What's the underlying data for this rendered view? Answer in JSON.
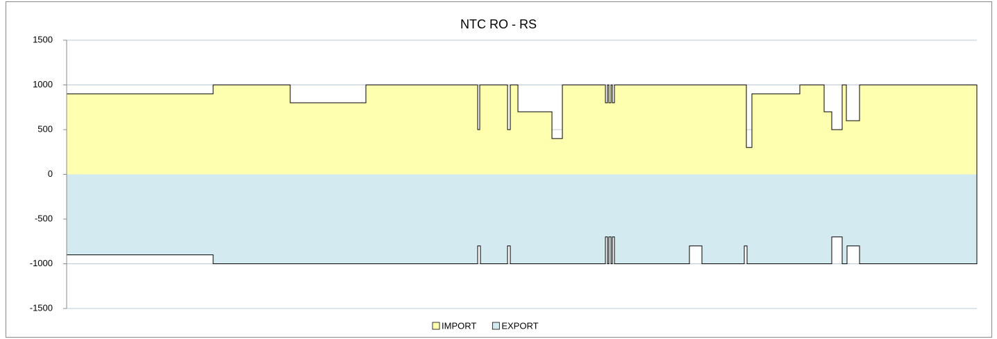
{
  "chart_data": {
    "type": "area",
    "step": true,
    "title": "NTC RO - RS",
    "x": [
      0,
      211,
      322,
      431,
      592,
      595,
      596,
      635,
      639,
      650,
      699,
      714,
      776,
      779,
      781,
      784,
      786,
      789,
      897,
      915,
      976,
      979,
      980,
      987,
      1056,
      1091,
      1102,
      1117,
      1123,
      1124,
      1142,
      1311
    ],
    "xlim": [
      0,
      1311
    ],
    "series": [
      {
        "name": "IMPORT",
        "color": "#ffffb0",
        "values": [
          900,
          1000,
          800,
          1000,
          500,
          1000,
          1000,
          500,
          1000,
          700,
          400,
          1000,
          800,
          1000,
          800,
          1000,
          800,
          1000,
          1000,
          1000,
          1000,
          300,
          300,
          900,
          1000,
          700,
          500,
          1000,
          600,
          600,
          1000,
          1000
        ]
      },
      {
        "name": "EXPORT",
        "color": "#d3eaf0",
        "values": [
          -900,
          -1000,
          -1000,
          -1000,
          -800,
          -800,
          -1000,
          -800,
          -1000,
          -1000,
          -1000,
          -1000,
          -700,
          -1000,
          -700,
          -1000,
          -700,
          -1000,
          -800,
          -1000,
          -800,
          -800,
          -1000,
          -1000,
          -1000,
          -1000,
          -700,
          -1000,
          -1000,
          -800,
          -1000,
          -1000
        ]
      }
    ],
    "ylim": [
      -1500,
      1500
    ],
    "yticks": [
      1500,
      1000,
      500,
      0,
      -500,
      -1000,
      -1500
    ],
    "grid": true,
    "legend": "bottom"
  }
}
